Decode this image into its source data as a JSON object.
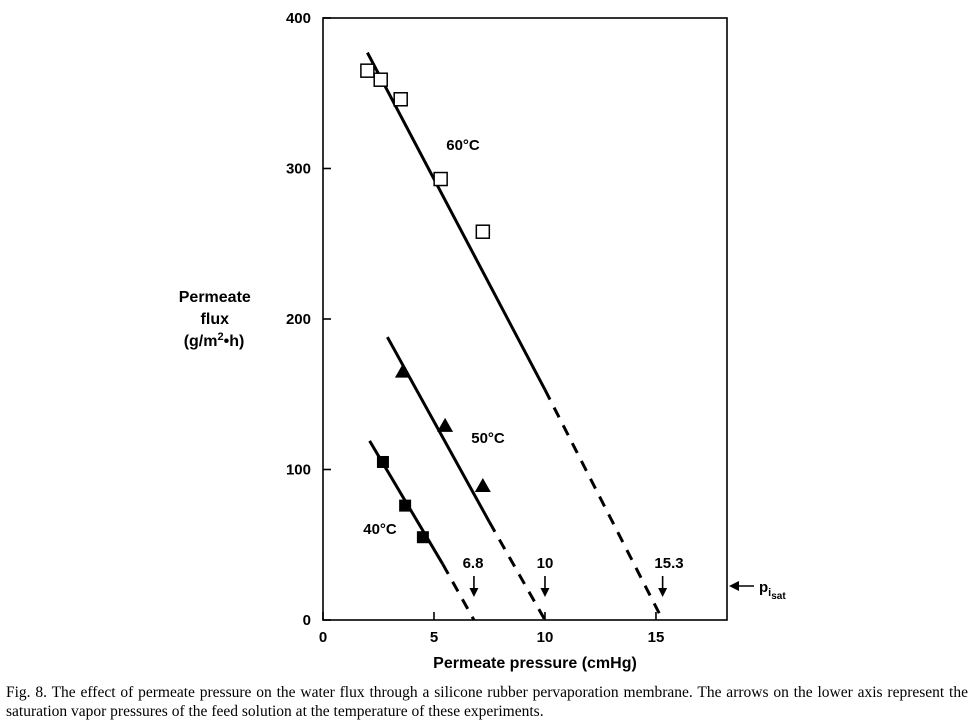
{
  "chart_data": {
    "type": "line",
    "xlabel": "Permeate pressure (cmHg)",
    "ylabel_lines": [
      "Permeate",
      "flux",
      "(g/m",
      "2",
      "•h)"
    ],
    "xlim": [
      0,
      18.2
    ],
    "ylim": [
      0,
      400
    ],
    "xticks": [
      0,
      5,
      10,
      15
    ],
    "yticks": [
      0,
      100,
      200,
      300,
      400
    ],
    "grid": false,
    "series": [
      {
        "name": "60°C",
        "marker": "open-square",
        "points": [
          [
            2.0,
            365
          ],
          [
            2.6,
            359
          ],
          [
            3.5,
            346
          ],
          [
            5.3,
            293
          ],
          [
            7.2,
            258
          ]
        ],
        "solid_line": [
          [
            2.0,
            377
          ],
          [
            10.0,
            153
          ]
        ],
        "dashed_line": [
          [
            10.0,
            153
          ],
          [
            15.3,
            0
          ]
        ]
      },
      {
        "name": "50°C",
        "marker": "filled-triangle",
        "points": [
          [
            3.6,
            165
          ],
          [
            5.5,
            129
          ],
          [
            7.2,
            89
          ]
        ],
        "solid_line": [
          [
            2.9,
            188
          ],
          [
            7.5,
            65
          ]
        ],
        "dashed_line": [
          [
            7.5,
            65
          ],
          [
            10.0,
            0
          ]
        ]
      },
      {
        "name": "40°C",
        "marker": "filled-square",
        "points": [
          [
            2.7,
            105
          ],
          [
            3.7,
            76
          ],
          [
            4.5,
            55
          ]
        ],
        "solid_line": [
          [
            2.1,
            119
          ],
          [
            5.4,
            37
          ]
        ],
        "dashed_line": [
          [
            5.4,
            37
          ],
          [
            6.8,
            0
          ]
        ]
      }
    ],
    "annotations": {
      "saturation_arrows": [
        {
          "label": "6.8",
          "x": 6.8
        },
        {
          "label": "10",
          "x": 10
        },
        {
          "label": "15.3",
          "x": 15.3
        }
      ],
      "side_marker": {
        "label": "p",
        "subscript": "i",
        "sub_subscript": "sat"
      }
    }
  },
  "caption": "Fig. 8. The effect of permeate pressure on the water flux through a silicone rubber pervaporation membrane. The arrows on the lower axis represent the saturation vapor pressures of the feed solution at the temperature of these experiments."
}
